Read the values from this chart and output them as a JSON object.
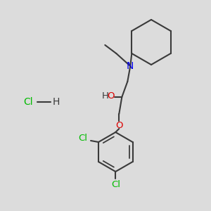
{
  "bg_color": "#dcdcdc",
  "bond_color": "#3a3a3a",
  "n_color": "#0000ee",
  "o_color": "#dd0000",
  "cl_color": "#00bb00",
  "line_width": 1.5,
  "figsize": [
    3.0,
    3.0
  ],
  "dpi": 100,
  "xlim": [
    0,
    300
  ],
  "ylim": [
    0,
    300
  ]
}
